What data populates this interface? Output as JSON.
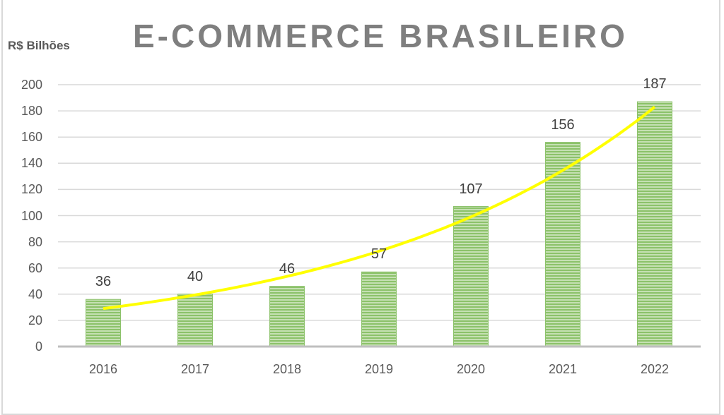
{
  "chart_data": {
    "type": "bar",
    "title": "E-COMMERCE BRASILEIRO",
    "ylabel": "R$ Bilhões",
    "xlabel": "",
    "categories": [
      "2016",
      "2017",
      "2018",
      "2019",
      "2020",
      "2021",
      "2022"
    ],
    "values": [
      36,
      40,
      46,
      57,
      107,
      156,
      187
    ],
    "data_labels": [
      "36",
      "40",
      "46",
      "57",
      "107",
      "156",
      "187"
    ],
    "ylim": [
      0,
      200
    ],
    "yticks": [
      "0",
      "20",
      "40",
      "60",
      "80",
      "100",
      "120",
      "140",
      "160",
      "180",
      "200"
    ],
    "grid": true,
    "legend": "none",
    "trendline": {
      "type": "exponential",
      "color": "#ffff00",
      "approx_start": 29,
      "approx_end": 183
    },
    "bar_color": "#70ad47"
  },
  "header": {
    "title": "E-COMMERCE BRASILEIRO",
    "unit_label": "R$ Bilhões"
  }
}
